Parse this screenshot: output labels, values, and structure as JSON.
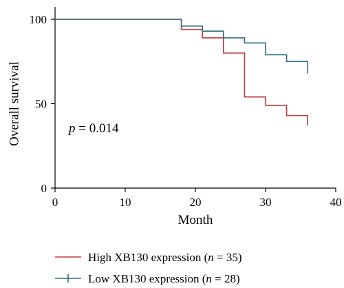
{
  "chart_data": {
    "type": "line",
    "step": true,
    "xlabel": "Month",
    "ylabel": "Overall survival",
    "xlim": [
      0,
      40
    ],
    "ylim": [
      0,
      100
    ],
    "xticks": [
      0,
      10,
      20,
      30,
      40
    ],
    "yticks": [
      0,
      50,
      100
    ],
    "grid": false,
    "legend_position": "bottom",
    "annotation": {
      "prefix": "p",
      "text": " = 0.014"
    },
    "series": [
      {
        "name": "High XB130 expression (n = 35)",
        "name_parts": {
          "before": "High XB130 expression (",
          "italic": "n",
          "after": " = 35)"
        },
        "color": "#c0393b",
        "x": [
          0,
          18,
          21,
          24,
          27,
          30,
          33,
          36
        ],
        "y": [
          100,
          94,
          89,
          80,
          54,
          49,
          43,
          37
        ]
      },
      {
        "name": "Low XB130 expression (n = 28)",
        "name_parts": {
          "before": "Low XB130 expression (",
          "italic": "n",
          "after": " = 28)"
        },
        "color": "#2e6b7e",
        "x": [
          0,
          18,
          21,
          24,
          27,
          30,
          33,
          36
        ],
        "y": [
          100,
          96,
          93,
          89,
          86,
          79,
          75,
          68
        ]
      }
    ]
  }
}
